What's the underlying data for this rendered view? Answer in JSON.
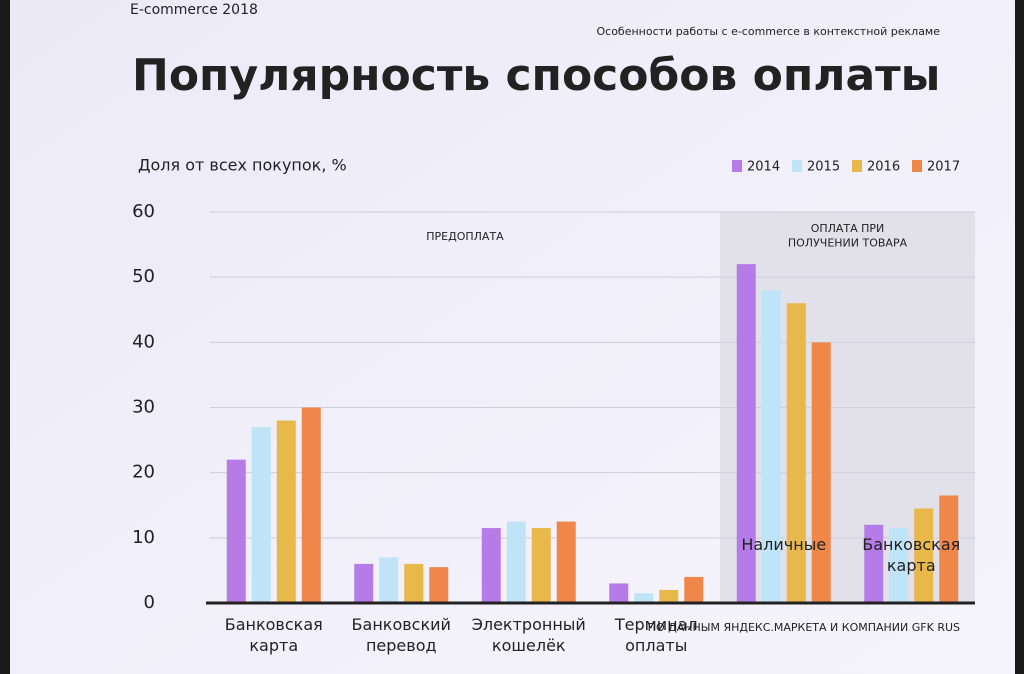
{
  "chart_data": {
    "type": "bar",
    "header": "E-commerce 2018",
    "subheader": "Особенности работы с e-commerce в контекстной рекламе",
    "title": "Популярность способов оплаты",
    "y_label": "Доля от всех покупок, %",
    "sections": [
      "ПРЕДОПЛАТА",
      "ОПЛАТА ПРИ ПОЛУЧЕНИИ ТОВАРА"
    ],
    "source": "ПО ДАННЫМ ЯНДЕКС.МАРКЕТА И КОМПАНИИ GFK RUS",
    "categories": [
      "Банковская карта",
      "Банковский перевод",
      "Электронный кошелёк",
      "Терминал оплаты",
      "Наличные",
      "Банковская карта"
    ],
    "series": [
      {
        "name": "2014",
        "color": "#b57be6",
        "values": [
          22,
          6,
          11.5,
          3,
          52,
          12
        ]
      },
      {
        "name": "2015",
        "color": "#bfe3f7",
        "values": [
          27,
          7,
          12.5,
          1.5,
          48,
          11.5
        ]
      },
      {
        "name": "2016",
        "color": "#e8b84a",
        "values": [
          28,
          6,
          11.5,
          2,
          46,
          14.5
        ]
      },
      {
        "name": "2017",
        "color": "#f0874a",
        "values": [
          30,
          5.5,
          12.5,
          4,
          40,
          16.5
        ]
      }
    ],
    "ylim": [
      0,
      60
    ],
    "yticks": [
      0,
      10,
      20,
      30,
      40,
      50,
      60
    ],
    "grid": true
  }
}
